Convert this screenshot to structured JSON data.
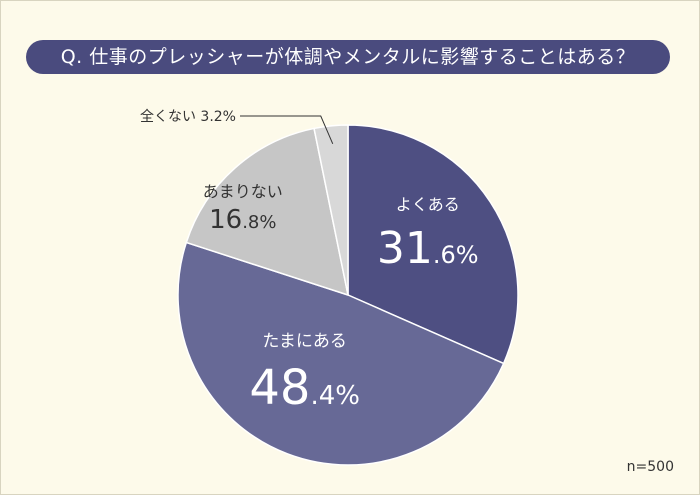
{
  "question": "Q. 仕事のプレッシャーが体調やメンタルに影響することはある？",
  "sample_size": "n=500",
  "chart_data": {
    "type": "pie",
    "title": "Q. 仕事のプレッシャーが体調やメンタルに影響することはある？",
    "labels": [
      "よくある",
      "たまにある",
      "あまりない",
      "全くない"
    ],
    "values": [
      31.6,
      48.4,
      16.8,
      3.2
    ],
    "value_text": {
      "main": [
        "31",
        "48",
        "16",
        "3"
      ],
      "decimal": [
        ".6%",
        ".4%",
        ".8%",
        ".2%"
      ]
    },
    "unit": "%",
    "colors": [
      "#4e4f82",
      "#676996",
      "#c6c6c6",
      "#d8d8d8"
    ],
    "start_angle_deg": 0,
    "direction": "clockwise",
    "outside_label": "全くない 3.2%"
  }
}
